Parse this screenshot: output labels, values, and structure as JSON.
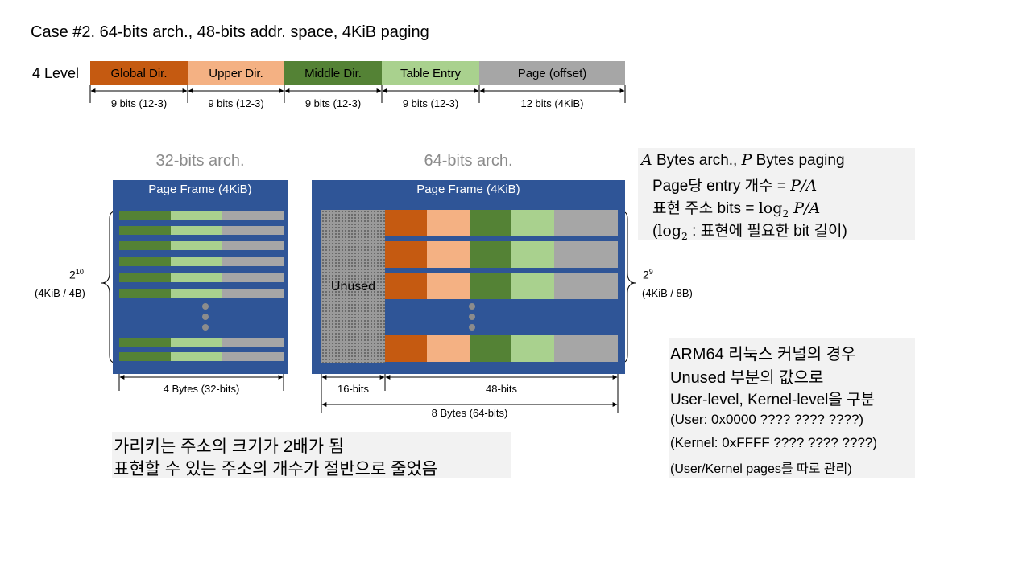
{
  "title": "Case #2. 64-bits arch., 48-bits addr. space, 4KiB paging",
  "level_label": "4 Level",
  "address_segments": [
    {
      "label": "Global Dir.",
      "bits": "9 bits (12-3)"
    },
    {
      "label": "Upper Dir.",
      "bits": "9 bits (12-3)"
    },
    {
      "label": "Middle Dir.",
      "bits": "9 bits (12-3)"
    },
    {
      "label": "Table Entry",
      "bits": "9 bits (12-3)"
    },
    {
      "label": "Page (offset)",
      "bits": "12 bits (4KiB)"
    }
  ],
  "colors": {
    "global": "#c55a11",
    "upper": "#f4b183",
    "middle": "#548235",
    "table": "#a9d18e",
    "page": "#a6a6a6",
    "frame": "#2f5597"
  },
  "arch32": {
    "title": "32-bits arch.",
    "frame_label": "Page Frame (4KiB)",
    "count_base": "2",
    "count_exp": "10",
    "count_note": "(4KiB / 4B)",
    "width_label": "4 Bytes (32-bits)"
  },
  "arch64": {
    "title": "64-bits arch.",
    "frame_label": "Page Frame (4KiB)",
    "unused_label": "Unused",
    "count_base": "2",
    "count_exp": "9",
    "count_note": "(4KiB / 8B)",
    "unused_width_label": "16-bits",
    "used_width_label": "48-bits",
    "width_label": "8 Bytes (64-bits)"
  },
  "formula_note": {
    "line1_var_a": "A",
    "line1_mid": " Bytes arch., ",
    "line1_var_p": "P",
    "line1_end": " Bytes paging",
    "line2_text": "Page당 entry 개수 = ",
    "line2_math": "P/A",
    "line3_text": "표현 주소 bits = ",
    "line3_log": "log",
    "line3_sub": "2",
    "line3_math": " P/A",
    "line4_open": "(",
    "line4_log": "log",
    "line4_sub": "2",
    "line4_text": " : 표현에 필요한 bit 길이)"
  },
  "arm_note": {
    "lines": [
      "ARM64 리눅스 커널의 경우",
      "Unused 부분의 값으로",
      "User-level, Kernel-level을 구분",
      "(User: 0x0000 ???? ???? ????)",
      "(Kernel: 0xFFFF ???? ???? ????)",
      "(User/Kernel  pages를 따로 관리)"
    ]
  },
  "bottom_note": {
    "lines": [
      "가리키는 주소의 크기가 2배가 됨",
      "표현할 수 있는 주소의 개수가 절반으로 줄었음"
    ]
  }
}
